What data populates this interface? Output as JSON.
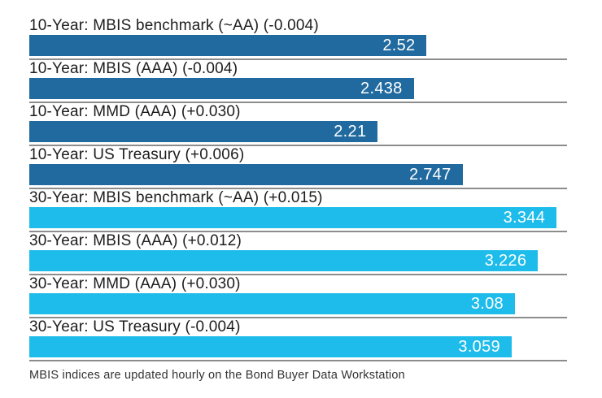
{
  "chart_data": {
    "type": "bar",
    "orientation": "horizontal",
    "title": "",
    "xlabel": "",
    "ylabel": "",
    "xlim": [
      0,
      3.41
    ],
    "grid": false,
    "legend": "none",
    "categories": [
      "10-Year: MBIS benchmark (~AA) (-0.004)",
      "10-Year: MBIS (AAA) (-0.004)",
      "10-Year: MMD (AAA) (+0.030)",
      "10-Year: US Treasury (+0.006)",
      "30-Year: MBIS benchmark (~AA) (+0.015)",
      "30-Year: MBIS (AAA) (+0.012)",
      "30-Year: MMD (AAA) (+0.030)",
      "30-Year: US Treasury (-0.004)"
    ],
    "values": [
      2.52,
      2.438,
      2.21,
      2.747,
      3.344,
      3.226,
      3.08,
      3.059
    ],
    "value_labels": [
      "2.52",
      "2.438",
      "2.21",
      "2.747",
      "3.344",
      "3.226",
      "3.08",
      "3.059"
    ],
    "deltas": [
      "-0.004",
      "-0.004",
      "+0.030",
      "+0.006",
      "+0.015",
      "+0.012",
      "+0.030",
      "-0.004"
    ],
    "groups": [
      "10-Year",
      "10-Year",
      "10-Year",
      "10-Year",
      "30-Year",
      "30-Year",
      "30-Year",
      "30-Year"
    ],
    "bar_colors": [
      "#216a9f",
      "#216a9f",
      "#216a9f",
      "#216a9f",
      "#1ebceb",
      "#1ebceb",
      "#1ebceb",
      "#1ebceb"
    ],
    "footnote": "MBIS indices are updated hourly on the Bond Buyer Data Workstation"
  },
  "colors": {
    "dark_blue_10yr": "#216a9f",
    "light_blue_30yr": "#1ebceb",
    "separator_gray": "#8c8c8c",
    "label_text": "#1d1d1d",
    "value_text": "#ffffff"
  }
}
